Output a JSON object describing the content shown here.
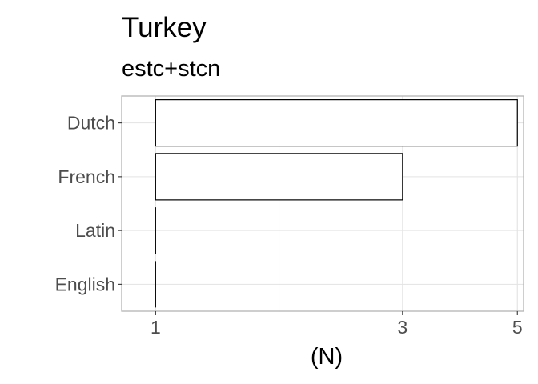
{
  "chart_data": {
    "type": "bar",
    "orientation": "horizontal",
    "title": "Turkey",
    "subtitle": "estc+stcn",
    "xlabel": "(N)",
    "ylabel": "",
    "categories": [
      "Dutch",
      "French",
      "Latin",
      "English"
    ],
    "values": [
      5,
      3,
      1,
      1
    ],
    "xlim": [
      0.86,
      5.14
    ],
    "x_scale": "log",
    "x_ticks": [
      1,
      3,
      5
    ],
    "x_tick_labels": [
      "1",
      "3",
      "5"
    ],
    "grid": true,
    "legend": "none",
    "colors": {
      "bar_fill": "#ffffff",
      "bar_stroke": "#000000",
      "grid_major": "#e3e3e3",
      "grid_minor": "#f1f1f1",
      "panel_border": "#b3b3b3",
      "tick_text": "#4d4d4d"
    }
  }
}
